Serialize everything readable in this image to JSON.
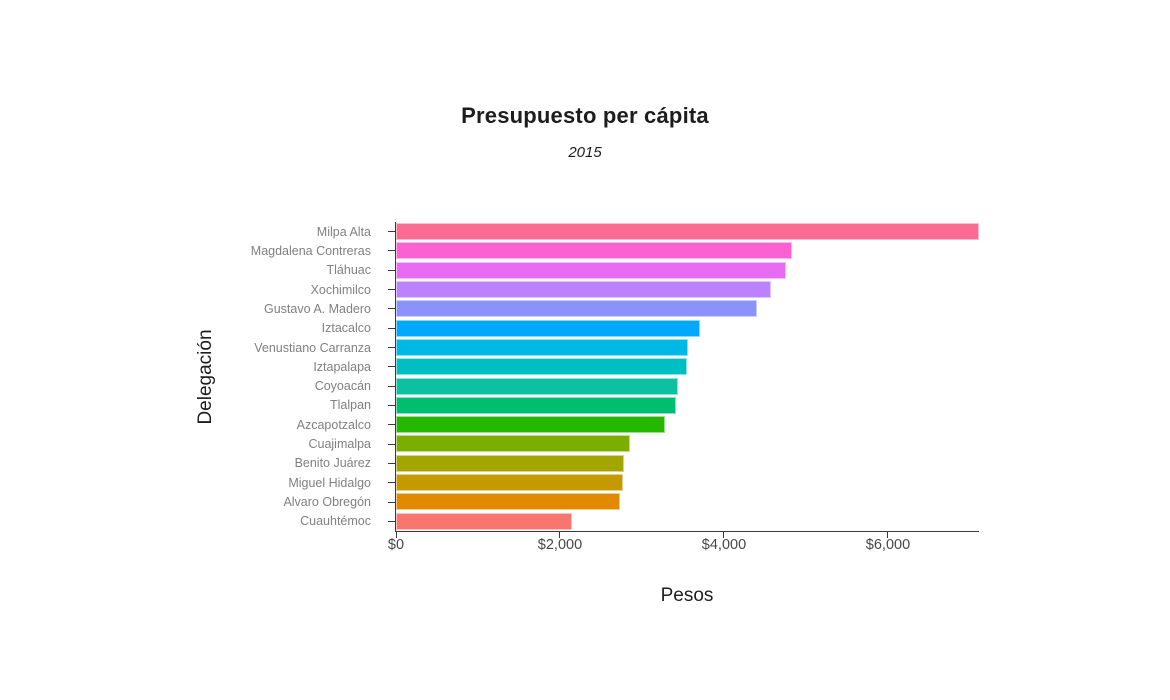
{
  "page": {
    "background": "#ffffff"
  },
  "chart_data": {
    "type": "bar",
    "orientation": "horizontal",
    "title": "Presupuesto per cápita",
    "subtitle": "2015",
    "xlabel": "Pesos",
    "ylabel": "Delegación",
    "xlim": [
      0,
      7110
    ],
    "grid": "off",
    "legend": "none",
    "xticks": [
      {
        "value": 0,
        "label": "$0"
      },
      {
        "value": 2000,
        "label": "$2,000"
      },
      {
        "value": 4000,
        "label": "$4,000"
      },
      {
        "value": 6000,
        "label": "$6,000"
      }
    ],
    "categories": [
      "Milpa Alta",
      "Magdalena Contreras",
      "Tláhuac",
      "Xochimilco",
      "Gustavo A. Madero",
      "Iztacalco",
      "Venustiano Carranza",
      "Iztapalapa",
      "Coyoacán",
      "Tlalpan",
      "Azcapotzalco",
      "Cuajimalpa",
      "Benito Juárez",
      "Miguel Hidalgo",
      "Alvaro Obregón",
      "Cuauhtémoc"
    ],
    "values": [
      7110,
      4830,
      4760,
      4570,
      4400,
      3710,
      3560,
      3550,
      3440,
      3410,
      3280,
      2850,
      2780,
      2770,
      2730,
      2150
    ],
    "bar_colors": [
      "#FB6B94",
      "#FB61D1",
      "#E76BF3",
      "#BC81FC",
      "#8B93FB",
      "#00A9FB",
      "#00B8E5",
      "#00BFC4",
      "#0DC0A2",
      "#00BE6F",
      "#26B700",
      "#7CAE00",
      "#A3A500",
      "#C49A00",
      "#E18A00",
      "#F8766D"
    ],
    "axis_color": "#3a3a3a",
    "y_tick_label_color": "#808080",
    "x_tick_label_color": "#474747",
    "title_color": "#1d1d1d"
  }
}
